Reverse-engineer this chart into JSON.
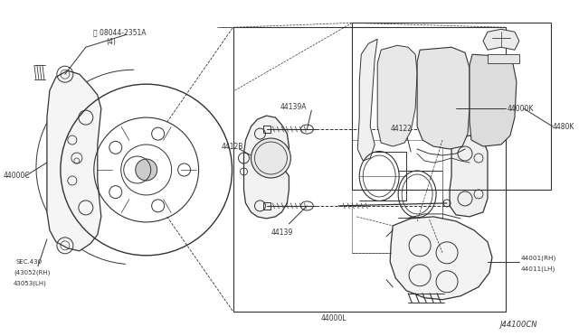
{
  "bg_color": "#ffffff",
  "line_color": "#333333",
  "text_color": "#333333",
  "diagram_ref": "J44100CN",
  "figsize": [
    6.4,
    3.72
  ],
  "dpi": 100,
  "labels": {
    "bolt_label": "Ⓑ 08044-2351A",
    "bolt_qty": "(4)",
    "knuckle": "44000C",
    "sec": "SEC.430",
    "sec1": "(43052(RH)",
    "sec2": "43053(LH)",
    "pin_top": "44139A",
    "caliper": "4412B",
    "pin_bolt": "44139",
    "piston": "44122",
    "assembly": "44000L",
    "pad_kit": "44000K",
    "pad_kit2": "4480K",
    "carrier_rh": "44001(RH)",
    "carrier_lh": "44011(LH)"
  }
}
